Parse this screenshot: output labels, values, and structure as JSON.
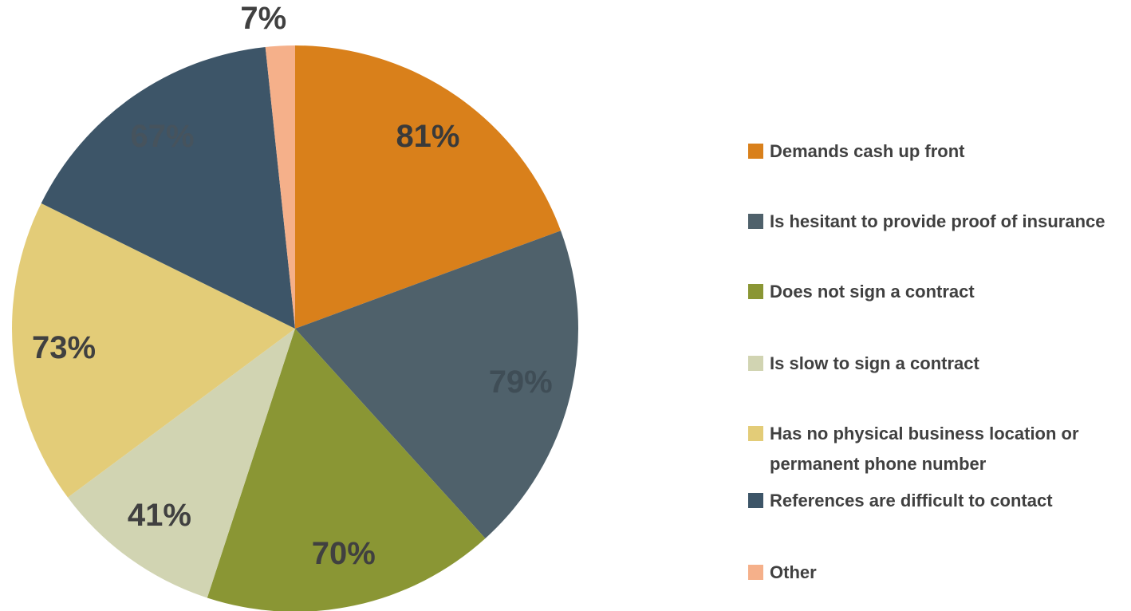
{
  "chart_data": {
    "type": "pie",
    "categories": [
      "Demands cash up front",
      "Is hesitant to provide proof of insurance",
      "Does not sign a contract",
      "Is slow to sign a contract",
      "Has no physical business location or permanent phone number",
      "References are difficult to contact",
      "Other"
    ],
    "values": [
      81,
      79,
      70,
      41,
      73,
      67,
      7
    ],
    "value_labels": [
      "81%",
      "79%",
      "70%",
      "41%",
      "73%",
      "67%",
      "7%"
    ],
    "colors": [
      "#d9801b",
      "#4f616b",
      "#8a9634",
      "#d1d4b2",
      "#e3cc78",
      "#3d5568",
      "#f5b08a"
    ],
    "legend": "right"
  }
}
